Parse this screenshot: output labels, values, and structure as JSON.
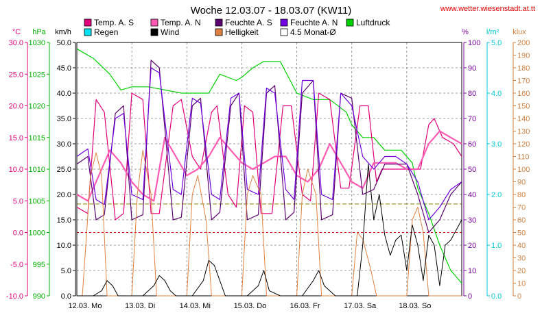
{
  "header": {
    "title": "Woche 12.03.07 - 18.03.07 (KW11)",
    "site": "www.wetter.wiesenstadt.at.tt"
  },
  "colors": {
    "temp": "#e0007a",
    "pressure": "#00d000",
    "humidity": "#7a00a0",
    "rain": "#00c8d8",
    "light": "#d08040",
    "wind": "#000000",
    "reference": "#808000",
    "grid": "#808080",
    "zero": "#e00000"
  },
  "chart_data": {
    "type": "line",
    "title": "Woche 12.03.07 - 18.03.07 (KW11)",
    "x_tick_labels": [
      "12.03. Mo",
      "13.03. Di",
      "14.03. Mi",
      "15.03. Do",
      "16.03. Fr",
      "17.03. Sa",
      "18.03. So"
    ],
    "x_range_days": [
      0,
      7
    ],
    "legend": [
      {
        "key": "temp_s",
        "label": "Temp. A. S",
        "color": "#e0007a"
      },
      {
        "key": "temp_n",
        "label": "Temp. A. N",
        "color": "#ff5ab4"
      },
      {
        "key": "hum_s",
        "label": "Feuchte A. S",
        "color": "#5a006e"
      },
      {
        "key": "hum_n",
        "label": "Feuchte A. N",
        "color": "#7000e0"
      },
      {
        "key": "pressure",
        "label": "Luftdruck",
        "color": "#00d000"
      },
      {
        "key": "rain",
        "label": "Regen",
        "color": "#00e0f0"
      },
      {
        "key": "wind",
        "label": "Wind",
        "color": "#000000"
      },
      {
        "key": "light",
        "label": "Helligkeit",
        "color": "#e08040"
      },
      {
        "key": "avg",
        "label": "4.5 Monat-Ø",
        "color": "#ffffff"
      }
    ],
    "axes": [
      {
        "unit": "°C",
        "min": -10,
        "max": 30,
        "ticks": [
          "-10.0",
          "-5.0",
          "0.0",
          "5.0",
          "10.0",
          "15.0",
          "20.0",
          "25.0",
          "30.0"
        ],
        "color": "#e0007a"
      },
      {
        "unit": "hPa",
        "min": 990,
        "max": 1030,
        "ticks": [
          "990",
          "995",
          "1000",
          "1005",
          "1010",
          "1015",
          "1020",
          "1025",
          "1030"
        ],
        "color": "#00b000"
      },
      {
        "unit": "km/h",
        "min": 0,
        "max": 50,
        "ticks": [
          "0.0",
          "5.0",
          "10.0",
          "15.0",
          "20.0",
          "25.0",
          "30.0",
          "35.0",
          "40.0",
          "45.0",
          "50.0"
        ],
        "color": "#000000"
      },
      {
        "unit": "%",
        "min": 0,
        "max": 100,
        "ticks": [
          "0",
          "10",
          "20",
          "30",
          "40",
          "50",
          "60",
          "70",
          "80",
          "90",
          "100"
        ],
        "color": "#7a00a0"
      },
      {
        "unit": "l/m²",
        "min": 0,
        "max": 5,
        "ticks": [
          "0.0",
          "1.0",
          "2.0",
          "3.0",
          "4.0",
          "5.0"
        ],
        "color": "#00c8d8"
      },
      {
        "unit": "klux",
        "min": 0,
        "max": 200,
        "ticks": [
          "0",
          "10",
          "20",
          "30",
          "40",
          "50",
          "60",
          "70",
          "80",
          "90",
          "100",
          "110",
          "120",
          "130",
          "140",
          "150",
          "160",
          "170",
          "180",
          "190",
          "200"
        ],
        "color": "#d08040"
      }
    ],
    "grid": true,
    "reference_line_celsius": 4.5,
    "series": [
      {
        "key": "pressure",
        "unit": "hPa",
        "x": [
          0,
          0.3,
          0.6,
          0.8,
          1.0,
          1.3,
          1.6,
          1.9,
          2.1,
          2.4,
          2.6,
          2.9,
          3.0,
          3.2,
          3.4,
          3.5,
          3.7,
          4.0,
          4.3,
          4.6,
          4.9,
          5.0,
          5.2,
          5.4,
          5.6,
          5.7,
          5.9,
          6.1,
          6.2,
          6.4,
          6.6,
          6.8,
          7.0
        ],
        "y": [
          1029,
          1027.5,
          1025,
          1022.5,
          1023,
          1023,
          1022.5,
          1022,
          1022,
          1022,
          1025,
          1024,
          1024.5,
          1026,
          1027,
          1027,
          1027,
          1022,
          1021,
          1021,
          1019,
          1017,
          1015,
          1015,
          1013,
          1013,
          1013,
          1011,
          1007,
          1003,
          998,
          994,
          992
        ]
      },
      {
        "key": "temp_s",
        "unit": "°C",
        "x": [
          0,
          0.2,
          0.35,
          0.5,
          0.7,
          0.85,
          1.0,
          1.2,
          1.35,
          1.5,
          1.75,
          1.9,
          2.1,
          2.25,
          2.45,
          2.55,
          2.75,
          2.9,
          3.05,
          3.2,
          3.35,
          3.55,
          3.75,
          3.9,
          4.1,
          4.25,
          4.4,
          4.6,
          4.8,
          4.95,
          5.15,
          5.3,
          5.45,
          5.55,
          5.7,
          5.9,
          6.1,
          6.25,
          6.4,
          6.5,
          6.65,
          6.85,
          7.0
        ],
        "y": [
          4,
          3,
          21,
          19,
          2,
          3,
          22,
          21,
          3,
          3,
          20,
          21,
          12,
          10,
          19,
          20,
          6,
          4,
          20,
          19,
          3,
          3,
          20,
          20,
          6,
          5,
          22,
          21,
          7,
          7,
          20,
          20,
          8,
          10,
          10,
          10,
          10,
          10,
          17,
          18,
          15,
          14,
          12
        ]
      },
      {
        "key": "temp_n",
        "unit": "°C",
        "x": [
          0,
          0.2,
          0.4,
          0.6,
          0.8,
          1.0,
          1.2,
          1.4,
          1.6,
          1.8,
          2.0,
          2.2,
          2.4,
          2.6,
          2.8,
          3.0,
          3.2,
          3.4,
          3.6,
          3.8,
          4.0,
          4.2,
          4.4,
          4.6,
          4.8,
          5.0,
          5.2,
          5.4,
          5.6,
          5.8,
          6.0,
          6.2,
          6.4,
          6.6,
          6.8,
          7.0
        ],
        "y": [
          6,
          5,
          9,
          13,
          11,
          8,
          6,
          5,
          15,
          12,
          9,
          10,
          12,
          15,
          13,
          11,
          10,
          11,
          12,
          12,
          9,
          8,
          10,
          14,
          11,
          8,
          7,
          11,
          11,
          11,
          10,
          10,
          14,
          16,
          15,
          14
        ]
      },
      {
        "key": "hum_s",
        "unit": "%",
        "x": [
          0,
          0.2,
          0.35,
          0.5,
          0.7,
          0.85,
          1.0,
          1.2,
          1.35,
          1.5,
          1.75,
          1.9,
          2.1,
          2.25,
          2.45,
          2.6,
          2.8,
          2.95,
          3.1,
          3.3,
          3.45,
          3.6,
          3.8,
          3.95,
          4.1,
          4.3,
          4.45,
          4.65,
          4.8,
          5.0,
          5.2,
          5.4,
          5.6,
          5.8,
          6.0,
          6.2,
          6.4,
          6.6,
          6.8,
          7.0
        ],
        "y": [
          52,
          55,
          30,
          32,
          72,
          75,
          30,
          32,
          93,
          90,
          30,
          31,
          75,
          78,
          30,
          33,
          75,
          80,
          30,
          32,
          80,
          83,
          30,
          33,
          80,
          85,
          30,
          32,
          80,
          78,
          40,
          42,
          52,
          52,
          52,
          40,
          25,
          30,
          40,
          45
        ]
      },
      {
        "key": "hum_n",
        "unit": "%",
        "x": [
          0,
          0.2,
          0.35,
          0.5,
          0.7,
          0.85,
          1.0,
          1.2,
          1.35,
          1.5,
          1.75,
          1.9,
          2.1,
          2.25,
          2.45,
          2.6,
          2.8,
          2.95,
          3.1,
          3.3,
          3.45,
          3.6,
          3.8,
          3.95,
          4.1,
          4.3,
          4.45,
          4.65,
          4.8,
          5.0,
          5.2,
          5.4,
          5.6,
          5.8,
          6.0,
          6.2,
          6.4,
          6.6,
          6.8,
          7.0
        ],
        "y": [
          55,
          58,
          38,
          36,
          70,
          72,
          40,
          38,
          90,
          88,
          42,
          40,
          78,
          76,
          40,
          38,
          78,
          80,
          42,
          40,
          82,
          80,
          42,
          38,
          85,
          85,
          40,
          38,
          80,
          75,
          55,
          50,
          55,
          55,
          52,
          45,
          30,
          35,
          42,
          45
        ]
      },
      {
        "key": "light",
        "unit": "klux",
        "x": [
          0,
          0.1,
          0.25,
          0.35,
          0.45,
          0.55,
          0.7,
          0.85,
          1.0,
          1.1,
          1.2,
          1.35,
          1.45,
          1.6,
          1.8,
          2.0,
          2.1,
          2.2,
          2.35,
          2.45,
          2.6,
          2.8,
          3.0,
          3.1,
          3.2,
          3.35,
          3.45,
          3.6,
          3.8,
          4.0,
          4.1,
          4.2,
          4.35,
          4.45,
          4.6,
          4.8,
          5.0,
          5.1,
          5.2,
          5.35,
          5.45,
          5.6,
          5.8,
          6.0,
          6.1,
          6.2,
          6.3,
          6.4,
          6.5,
          6.7,
          7.0
        ],
        "y": [
          0,
          0,
          95,
          113,
          95,
          0,
          0,
          0,
          0,
          80,
          115,
          80,
          0,
          0,
          0,
          0,
          80,
          95,
          60,
          0,
          0,
          0,
          0,
          80,
          95,
          80,
          0,
          0,
          0,
          0,
          80,
          100,
          80,
          0,
          0,
          0,
          0,
          50,
          45,
          20,
          0,
          0,
          0,
          0,
          60,
          70,
          50,
          0,
          0,
          0,
          0
        ]
      },
      {
        "key": "wind",
        "unit": "km/h",
        "x": [
          0,
          0.3,
          0.45,
          0.55,
          0.65,
          0.75,
          0.9,
          1.2,
          1.4,
          1.5,
          1.6,
          1.7,
          1.8,
          2.1,
          2.3,
          2.4,
          2.5,
          2.6,
          2.7,
          2.9,
          3.1,
          3.3,
          3.4,
          3.5,
          3.7,
          3.9,
          4.1,
          4.3,
          4.4,
          4.5,
          4.7,
          4.9,
          5.1,
          5.2,
          5.3,
          5.4,
          5.5,
          5.6,
          5.7,
          5.8,
          5.9,
          6.0,
          6.1,
          6.2,
          6.3,
          6.4,
          6.5,
          6.6,
          6.7,
          6.8,
          7.0
        ],
        "y": [
          0,
          0,
          1,
          3,
          2,
          0,
          0,
          0,
          2,
          4,
          3,
          1,
          0,
          0,
          3,
          7,
          6,
          3,
          0,
          0,
          0,
          2,
          5,
          1,
          0,
          0,
          0,
          3,
          5,
          2,
          0,
          0,
          0,
          10,
          26,
          15,
          20,
          12,
          8,
          11,
          12,
          5,
          14,
          10,
          3,
          12,
          10,
          2,
          10,
          11,
          15
        ]
      }
    ]
  }
}
